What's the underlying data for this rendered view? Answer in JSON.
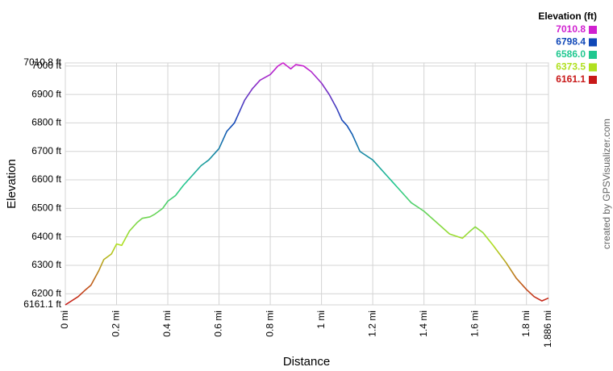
{
  "chart_data": {
    "type": "line",
    "xlabel": "Distance",
    "ylabel": "Elevation",
    "legend_title": "Elevation (ft)",
    "credit": "created by GPSVisualizer.com",
    "grid": true,
    "legend_position": "top-right",
    "x": [
      0,
      0.05,
      0.08,
      0.1,
      0.13,
      0.15,
      0.18,
      0.2,
      0.22,
      0.25,
      0.28,
      0.3,
      0.33,
      0.35,
      0.38,
      0.4,
      0.43,
      0.46,
      0.5,
      0.53,
      0.56,
      0.6,
      0.63,
      0.66,
      0.68,
      0.7,
      0.73,
      0.76,
      0.8,
      0.83,
      0.85,
      0.88,
      0.9,
      0.93,
      0.96,
      1.0,
      1.03,
      1.06,
      1.08,
      1.1,
      1.12,
      1.15,
      1.2,
      1.25,
      1.28,
      1.3,
      1.35,
      1.4,
      1.45,
      1.5,
      1.55,
      1.58,
      1.6,
      1.63,
      1.67,
      1.72,
      1.76,
      1.8,
      1.83,
      1.86,
      1.886
    ],
    "values": [
      6161.1,
      6190,
      6215,
      6230,
      6280,
      6320,
      6340,
      6375,
      6370,
      6420,
      6450,
      6465,
      6470,
      6480,
      6500,
      6525,
      6545,
      6580,
      6620,
      6650,
      6670,
      6710,
      6770,
      6800,
      6840,
      6880,
      6920,
      6950,
      6970,
      7000,
      7010.8,
      6990,
      7005,
      7000,
      6980,
      6940,
      6900,
      6850,
      6810,
      6790,
      6760,
      6700,
      6670,
      6620,
      6590,
      6570,
      6520,
      6490,
      6450,
      6410,
      6395,
      6420,
      6435,
      6415,
      6370,
      6310,
      6255,
      6215,
      6190,
      6175,
      6185
    ],
    "color_scale": [
      {
        "value": 7010.8,
        "label": "7010.8",
        "color": "#d020d0"
      },
      {
        "value": 6798.4,
        "label": "6798.4",
        "color": "#1048b8"
      },
      {
        "value": 6586,
        "label": "6586.0",
        "color": "#20c890"
      },
      {
        "value": 6373.5,
        "label": "6373.5",
        "color": "#b0e020"
      },
      {
        "value": 6161.1,
        "label": "6161.1",
        "color": "#c81818"
      }
    ],
    "xlim": [
      0,
      1.886
    ],
    "ylim": [
      6161.1,
      7010.8
    ],
    "xticks": [
      {
        "value": 0,
        "label": "0 mi"
      },
      {
        "value": 0.2,
        "label": "0.2 mi"
      },
      {
        "value": 0.4,
        "label": "0.4 mi"
      },
      {
        "value": 0.6,
        "label": "0.6 mi"
      },
      {
        "value": 0.8,
        "label": "0.8 mi"
      },
      {
        "value": 1,
        "label": "1 mi"
      },
      {
        "value": 1.2,
        "label": "1.2 mi"
      },
      {
        "value": 1.4,
        "label": "1.4 mi"
      },
      {
        "value": 1.6,
        "label": "1.6 mi"
      },
      {
        "value": 1.8,
        "label": "1.8 mi"
      },
      {
        "value": 1.886,
        "label": "1.886 mi"
      }
    ],
    "yticks": [
      {
        "value": 6161.1,
        "label": "6161.1 ft"
      },
      {
        "value": 6200,
        "label": "6200 ft"
      },
      {
        "value": 6300,
        "label": "6300 ft"
      },
      {
        "value": 6400,
        "label": "6400 ft"
      },
      {
        "value": 6500,
        "label": "6500 ft"
      },
      {
        "value": 6600,
        "label": "6600 ft"
      },
      {
        "value": 6700,
        "label": "6700 ft"
      },
      {
        "value": 6800,
        "label": "6800 ft"
      },
      {
        "value": 6900,
        "label": "6900 ft"
      },
      {
        "value": 7000,
        "label": "7000 ft"
      },
      {
        "value": 7010.8,
        "label": "7010.8 ft"
      }
    ]
  }
}
